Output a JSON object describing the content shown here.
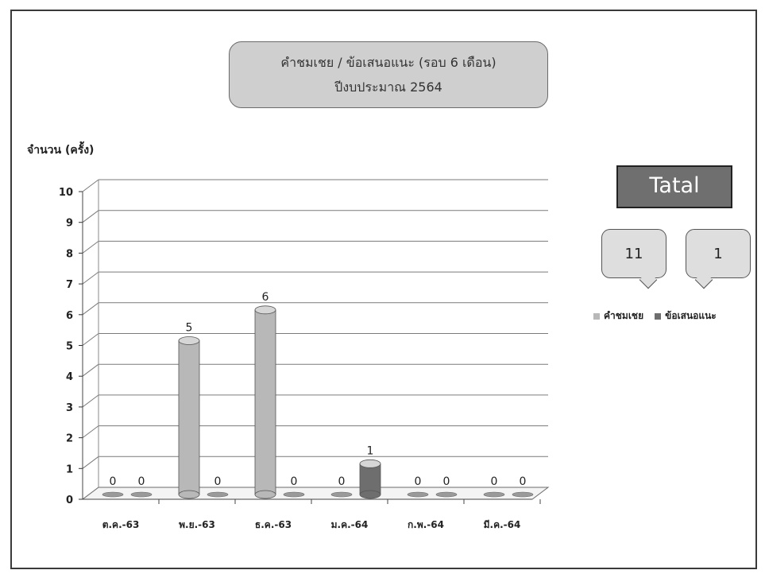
{
  "title": {
    "line1": "คำชมเชย / ข้อเสนอแนะ (รอบ 6 เดือน)",
    "line2": "ปีงบประมาณ 2564"
  },
  "total": {
    "label": "Tatal",
    "values": [
      "11",
      "1"
    ]
  },
  "colors": {
    "series1": "#b8b8b8",
    "series2": "#6e6e6e",
    "title_box": "#cfcfcf",
    "total_box": "#6f6f6f"
  },
  "chart_data": {
    "type": "bar",
    "ylabel": "จำนวน (ครั้ง)",
    "xlabel": "",
    "ylim": [
      0,
      10
    ],
    "yticks": [
      0,
      1,
      2,
      3,
      4,
      5,
      6,
      7,
      8,
      9,
      10
    ],
    "categories": [
      "ต.ค.-63",
      "พ.ย.-63",
      "ธ.ค.-63",
      "ม.ค.-64",
      "ก.พ.-64",
      "มี.ค.-64"
    ],
    "series": [
      {
        "name": "คำชมเชย",
        "values": [
          0,
          5,
          6,
          0,
          0,
          0
        ]
      },
      {
        "name": "ข้อเสนอแนะ",
        "values": [
          0,
          0,
          0,
          1,
          0,
          0
        ]
      }
    ],
    "grid": true,
    "legend": "right"
  }
}
